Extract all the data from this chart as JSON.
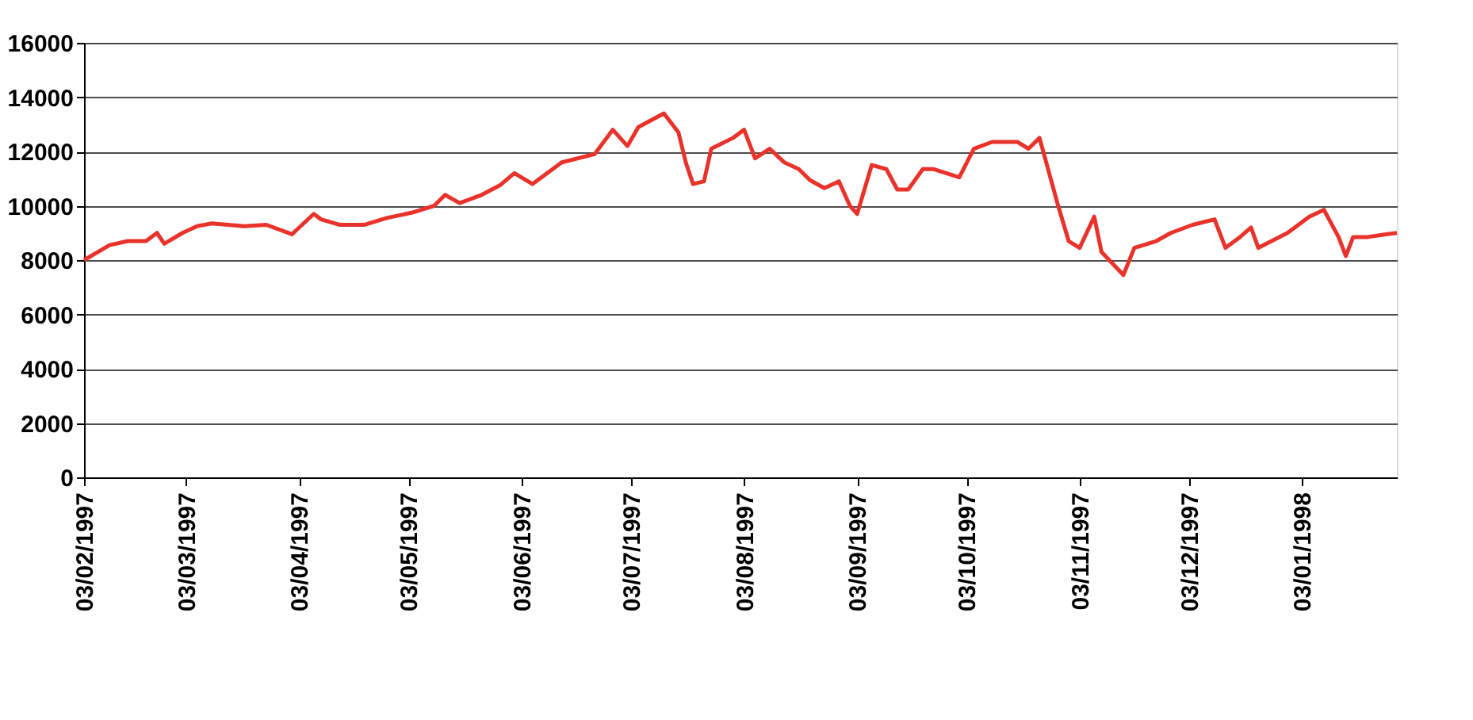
{
  "chart_data": {
    "type": "line",
    "x": [
      "1997-02-03",
      "1997-02-10",
      "1997-02-15",
      "1997-02-20",
      "1997-02-23",
      "1997-02-25",
      "1997-03-02",
      "1997-03-06",
      "1997-03-10",
      "1997-03-19",
      "1997-03-25",
      "1997-04-01",
      "1997-04-07",
      "1997-04-09",
      "1997-04-14",
      "1997-04-21",
      "1997-04-27",
      "1997-05-04",
      "1997-05-10",
      "1997-05-13",
      "1997-05-17",
      "1997-05-23",
      "1997-05-28",
      "1997-06-01",
      "1997-06-06",
      "1997-06-14",
      "1997-06-23",
      "1997-06-28",
      "1997-07-02",
      "1997-07-05",
      "1997-07-12",
      "1997-07-16",
      "1997-07-18",
      "1997-07-20",
      "1997-07-23",
      "1997-07-25",
      "1997-07-31",
      "1997-08-03",
      "1997-08-06",
      "1997-08-10",
      "1997-08-14",
      "1997-08-18",
      "1997-08-21",
      "1997-08-25",
      "1997-08-29",
      "1997-09-01",
      "1997-09-03",
      "1997-09-07",
      "1997-09-11",
      "1997-09-14",
      "1997-09-17",
      "1997-09-21",
      "1997-09-24",
      "1997-10-01",
      "1997-10-05",
      "1997-10-10",
      "1997-10-17",
      "1997-10-20",
      "1997-10-23",
      "1997-10-28",
      "1997-10-31",
      "1997-11-03",
      "1997-11-07",
      "1997-11-09",
      "1997-11-15",
      "1997-11-18",
      "1997-11-24",
      "1997-11-28",
      "1997-12-04",
      "1997-12-10",
      "1997-12-13",
      "1997-12-17",
      "1997-12-20",
      "1997-12-22",
      "1997-12-30",
      "1998-01-05",
      "1998-01-09",
      "1998-01-13",
      "1998-01-15",
      "1998-01-17",
      "1998-01-21",
      "1998-01-26",
      "1998-01-29"
    ],
    "series": [
      {
        "color": "#e8322a",
        "values": [
          8000,
          8550,
          8700,
          8700,
          9000,
          8600,
          9000,
          9250,
          9350,
          9250,
          9300,
          8950,
          9700,
          9500,
          9300,
          9300,
          9550,
          9750,
          10000,
          10400,
          10100,
          10400,
          10750,
          11200,
          10800,
          11600,
          11900,
          12800,
          12200,
          12900,
          13400,
          12700,
          11600,
          10800,
          10900,
          12100,
          12500,
          12800,
          11750,
          12100,
          11600,
          11350,
          10950,
          10650,
          10900,
          10000,
          9700,
          11500,
          11350,
          10600,
          10600,
          11350,
          11350,
          11050,
          12100,
          12350,
          12350,
          12100,
          12500,
          10050,
          8700,
          8450,
          9600,
          8300,
          7450,
          8450,
          8700,
          9000,
          9300,
          9500,
          8450,
          8850,
          9200,
          8450,
          9000,
          9600,
          9850,
          8850,
          8150,
          8850,
          8850,
          8950,
          9000
        ]
      }
    ],
    "xlim": [
      "1997-02-03",
      "1998-01-29"
    ],
    "xticks": [
      {
        "value": "1997-02-03",
        "label": "03/02/1997"
      },
      {
        "value": "1997-03-03",
        "label": "03/03/1997"
      },
      {
        "value": "1997-04-03",
        "label": "03/04/1997"
      },
      {
        "value": "1997-05-03",
        "label": "03/05/1997"
      },
      {
        "value": "1997-06-03",
        "label": "03/06/1997"
      },
      {
        "value": "1997-07-03",
        "label": "03/07/1997"
      },
      {
        "value": "1997-08-03",
        "label": "03/08/1997"
      },
      {
        "value": "1997-09-03",
        "label": "03/09/1997"
      },
      {
        "value": "1997-10-03",
        "label": "03/10/1997"
      },
      {
        "value": "1997-11-03",
        "label": "03/11/1997"
      },
      {
        "value": "1997-12-03",
        "label": "03/12/1997"
      },
      {
        "value": "1998-01-03",
        "label": "03/01/1998"
      }
    ],
    "ylim": [
      0,
      16000
    ],
    "yticks": [
      0,
      2000,
      4000,
      6000,
      8000,
      10000,
      12000,
      14000,
      16000
    ],
    "grid": "y",
    "marker": "none",
    "line_style": "solid"
  }
}
